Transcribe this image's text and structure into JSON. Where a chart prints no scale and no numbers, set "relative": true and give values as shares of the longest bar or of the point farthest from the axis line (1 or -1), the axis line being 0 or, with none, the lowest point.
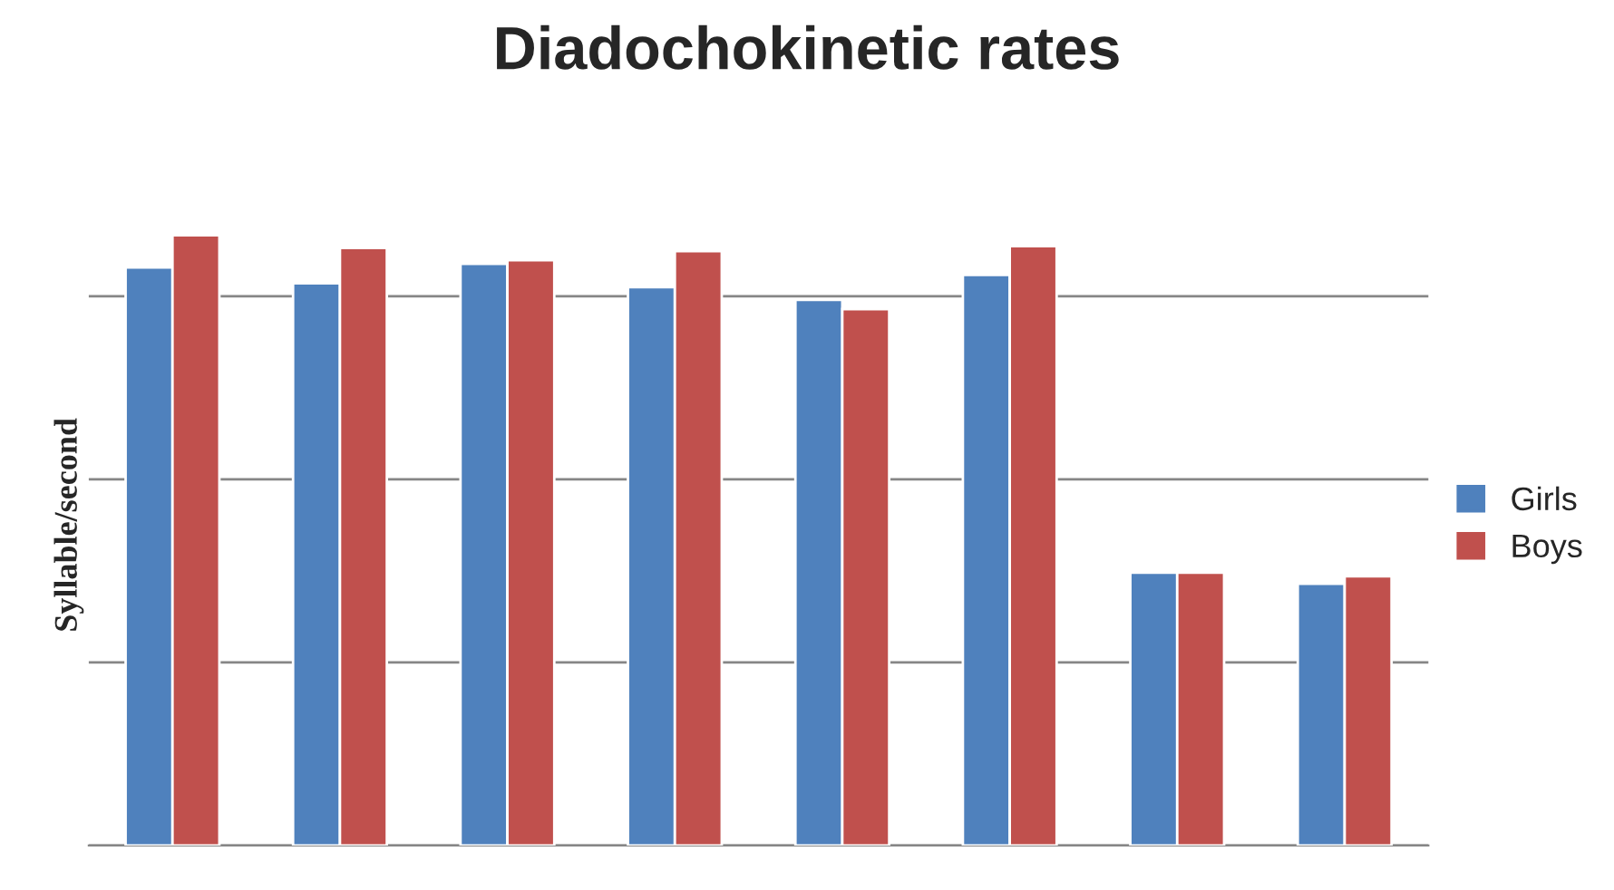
{
  "chart_data": {
    "type": "bar",
    "title": "Diadochokinetic rates",
    "ylabel": "Syllable/second",
    "relative": true,
    "categories": [
      null,
      null,
      null,
      null,
      null,
      null,
      null,
      null
    ],
    "series": [
      {
        "name": "Girls",
        "color": "#4f81bd",
        "values": [
          0.947,
          0.921,
          0.953,
          0.915,
          0.894,
          0.935,
          0.447,
          0.429
        ]
      },
      {
        "name": "Boys",
        "color": "#c0504d",
        "values": [
          1,
          0.979,
          0.959,
          0.974,
          0.879,
          0.982,
          0.447,
          0.441
        ]
      }
    ],
    "grid": "y",
    "legend": "right"
  }
}
